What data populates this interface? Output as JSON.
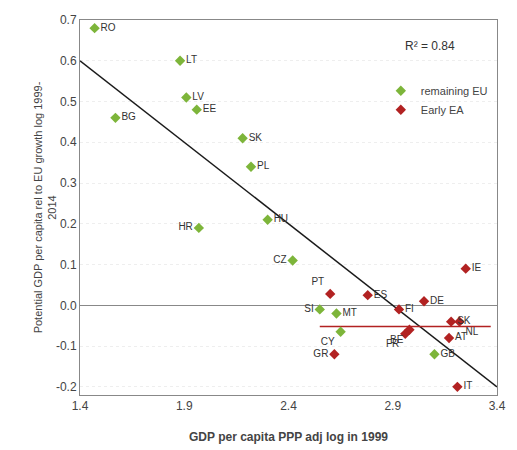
{
  "chart_data": {
    "type": "scatter",
    "xlabel": "GDP per capita PPP adj log in 1999",
    "ylabel": "Potential GDP per capita rel to EU growth log 1999-\n2014",
    "series": [
      {
        "name": "remaining EU",
        "color": "#7db53a",
        "marker": "diamond",
        "labels": [
          "RO",
          "BG",
          "LT",
          "LV",
          "EE",
          "SK",
          "PL",
          "HR",
          "HU",
          "CZ",
          "SI",
          "MT",
          "CY",
          "GB"
        ],
        "x": [
          1.47,
          1.57,
          1.88,
          1.91,
          1.96,
          2.18,
          2.22,
          1.97,
          2.3,
          2.42,
          2.55,
          2.63,
          2.65,
          3.1
        ],
        "values": [
          0.68,
          0.46,
          0.6,
          0.51,
          0.48,
          0.41,
          0.34,
          0.19,
          0.21,
          0.11,
          -0.01,
          -0.02,
          -0.065,
          -0.12
        ]
      },
      {
        "name": "Early EA",
        "color": "#b22222",
        "marker": "diamond",
        "labels": [
          "PT",
          "ES",
          "IE",
          "DE",
          "FI",
          "SK",
          "NL",
          "AT",
          "BE",
          "FR",
          "GR",
          "IT"
        ],
        "x": [
          2.6,
          2.78,
          3.25,
          3.05,
          2.93,
          3.18,
          3.22,
          3.17,
          2.98,
          2.96,
          2.62,
          3.21
        ],
        "values": [
          0.028,
          0.025,
          0.09,
          0.01,
          -0.01,
          -0.04,
          -0.04,
          -0.08,
          -0.06,
          -0.07,
          -0.12,
          -0.2
        ]
      }
    ],
    "lines": [
      {
        "x": [
          1.4,
          3.4
        ],
        "values": [
          0.6,
          -0.2
        ],
        "color": "#1a1a1a",
        "line_style": "solid"
      },
      {
        "x": [
          2.55,
          3.37
        ],
        "values": [
          -0.052,
          -0.052
        ],
        "color": "#b22222",
        "line_style": "solid"
      }
    ],
    "annotations": [
      {
        "text": "R² = 0.84",
        "x": 2.95,
        "y": 0.635
      }
    ],
    "xlim": [
      1.4,
      3.4
    ],
    "ylim": [
      -0.22,
      0.7
    ],
    "xticks": [
      1.4,
      1.9,
      2.4,
      2.9,
      3.4
    ],
    "yticks": [
      -0.2,
      -0.1,
      {
        "value": 0.0,
        "label": "0.0"
      },
      0.1,
      0.2,
      0.3,
      0.4,
      0.5,
      0.6,
      0.7
    ],
    "grid": "y",
    "legend": "upper right"
  }
}
